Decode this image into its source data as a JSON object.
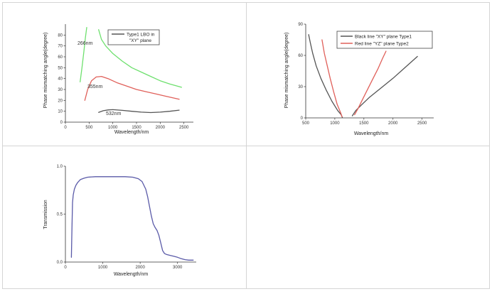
{
  "colors": {
    "border": "#d4d4d4",
    "axis": "#333333",
    "green": "#6ee06e",
    "red": "#e0605a",
    "dark": "#555555",
    "blue": "#5a5aa8"
  },
  "chart_data": [
    {
      "type": "line",
      "xlabel": "Wavelength/nm",
      "ylabel": "Phase mismatching angle(degree)",
      "xlim": [
        0,
        2700
      ],
      "ylim": [
        0,
        90
      ],
      "xticks": [
        0,
        500,
        1000,
        1500,
        2000,
        2500
      ],
      "yticks": [
        0,
        10,
        20,
        30,
        40,
        50,
        60,
        70,
        80
      ],
      "legend": {
        "placement": "top-right",
        "lines": [
          "Type1 LBO in",
          "\"XY\" plane"
        ]
      },
      "annotations": [
        "266nm",
        "355nm",
        "532nm"
      ],
      "series": [
        {
          "color": "green",
          "x": [
            310,
            350,
            390,
            420,
            450
          ],
          "y": [
            37,
            50,
            65,
            77,
            87
          ]
        },
        {
          "color": "green",
          "x": [
            700,
            760,
            850,
            1000,
            1200,
            1400,
            1600,
            1800,
            2000,
            2200,
            2450
          ],
          "y": [
            85,
            76,
            70,
            63,
            56,
            50,
            46,
            42,
            38,
            35,
            32
          ]
        },
        {
          "color": "red",
          "x": [
            410,
            470,
            550,
            650,
            760,
            900,
            1100,
            1300,
            1500,
            1700,
            1900,
            2100,
            2400
          ],
          "y": [
            20,
            30,
            38,
            41.5,
            42,
            40,
            36,
            33,
            30,
            28,
            26,
            24,
            21
          ]
        },
        {
          "color": "dark",
          "x": [
            700,
            800,
            900,
            1000,
            1200,
            1400,
            1600,
            1800,
            2000,
            2200,
            2400
          ],
          "y": [
            9,
            10.5,
            11.2,
            11.5,
            10.8,
            10,
            9.2,
            8.8,
            9.2,
            10,
            11
          ]
        }
      ]
    },
    {
      "type": "line",
      "xlabel": "Wavelength/nm",
      "ylabel": "Phase mismatching angle(degree)",
      "xlim": [
        500,
        2700
      ],
      "ylim": [
        0,
        90
      ],
      "xticks": [
        500,
        1000,
        1500,
        2000,
        2500
      ],
      "yticks": [
        0,
        30,
        60,
        90
      ],
      "legend": {
        "placement": "top-right"
      },
      "series": [
        {
          "name": "Black line \"XY\" plane Type1",
          "color": "dark",
          "x": [
            550,
            580,
            620,
            680,
            760,
            850,
            950,
            1050,
            1110,
            1130
          ],
          "y": [
            80,
            72,
            62,
            50,
            38,
            27,
            16,
            7,
            3,
            0.5
          ]
        },
        {
          "name": "",
          "color": "dark",
          "x": [
            1300,
            1360,
            1450,
            1600,
            1800,
            2000,
            2200,
            2420
          ],
          "y": [
            2,
            7,
            12,
            20,
            29,
            38,
            48,
            59
          ]
        },
        {
          "name": "Red line \"YZ\" plane Type2",
          "color": "red",
          "x": [
            780,
            820,
            870,
            920,
            980,
            1040,
            1100,
            1125
          ],
          "y": [
            75,
            62,
            50,
            38,
            25,
            13,
            5,
            1
          ]
        },
        {
          "name": "",
          "color": "red",
          "x": [
            1340,
            1400,
            1470,
            1560,
            1650,
            1740,
            1820,
            1880
          ],
          "y": [
            3,
            9,
            17,
            27,
            37,
            47,
            57,
            64
          ]
        }
      ]
    },
    {
      "type": "line",
      "xlabel": "Wavelength/nm",
      "ylabel": "Transmission",
      "xlim": [
        0,
        3500
      ],
      "ylim": [
        0,
        1.0
      ],
      "xticks": [
        0,
        1000,
        2000,
        3000
      ],
      "ytick_labels": [
        "0.0",
        "0.5",
        "1.0"
      ],
      "yticks": [
        0,
        0.5,
        1.0
      ],
      "series": [
        {
          "color": "blue",
          "x": [
            160,
            175,
            190,
            210,
            240,
            280,
            330,
            400,
            500,
            600,
            800,
            1000,
            1200,
            1400,
            1600,
            1800,
            1950,
            2050,
            2150,
            2200,
            2250,
            2300,
            2350,
            2400,
            2450,
            2500,
            2550,
            2600,
            2650,
            2700,
            2800,
            2900,
            3000,
            3100,
            3200,
            3300,
            3420
          ],
          "y": [
            0.05,
            0.35,
            0.62,
            0.7,
            0.76,
            0.8,
            0.83,
            0.86,
            0.875,
            0.885,
            0.89,
            0.89,
            0.89,
            0.89,
            0.89,
            0.885,
            0.87,
            0.84,
            0.76,
            0.68,
            0.58,
            0.48,
            0.4,
            0.36,
            0.33,
            0.28,
            0.2,
            0.12,
            0.09,
            0.08,
            0.07,
            0.06,
            0.05,
            0.035,
            0.025,
            0.02,
            0.02
          ]
        }
      ]
    }
  ]
}
